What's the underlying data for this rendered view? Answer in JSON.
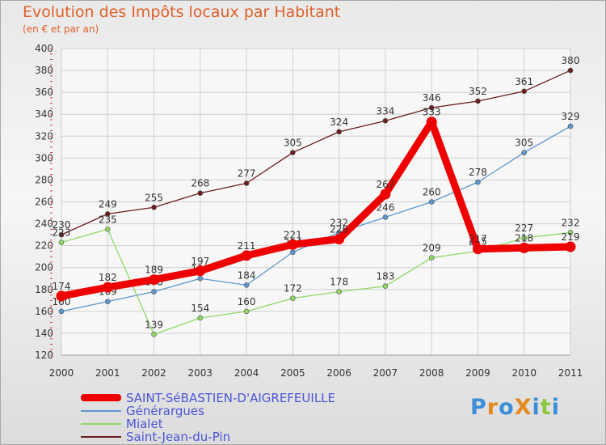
{
  "title": "Evolution des Impôts locaux par Habitant",
  "subtitle": "(en € et par an)",
  "logo_text": "ProXiti",
  "chart_data": {
    "type": "line",
    "title": "Evolution des Impôts locaux par Habitant",
    "ylabel": "(en € et par an)",
    "xlabel": "",
    "ylim": [
      120,
      400
    ],
    "yticks": [
      120,
      140,
      160,
      180,
      200,
      220,
      240,
      260,
      280,
      300,
      320,
      340,
      360,
      380,
      400
    ],
    "categories": [
      "2000",
      "2001",
      "2002",
      "2003",
      "2004",
      "2005",
      "2006",
      "2007",
      "2008",
      "2009",
      "2010",
      "2011"
    ],
    "grid": true,
    "legend_position": "bottom-left",
    "series": [
      {
        "name": "Saint-Jean-du-Pin",
        "color": "#6b1c1c",
        "values": [
          230,
          249,
          255,
          268,
          277,
          305,
          324,
          334,
          346,
          352,
          361,
          380
        ]
      },
      {
        "name": "Générargues",
        "color": "#5b97d0",
        "values": [
          160,
          169,
          178,
          190,
          184,
          214,
          232,
          246,
          260,
          278,
          305,
          329
        ]
      },
      {
        "name": "Mialet",
        "color": "#8fd866",
        "values": [
          223,
          235,
          139,
          154,
          160,
          172,
          178,
          183,
          209,
          215,
          227,
          232
        ]
      },
      {
        "name": "SAINT-SéBASTIEN-D'AIGREFEUILLE",
        "color": "#ee0000",
        "values": [
          174,
          182,
          189,
          197,
          211,
          221,
          226,
          267,
          333,
          217,
          218,
          219
        ]
      }
    ],
    "value_labels": {
      "Saint-Jean-du-Pin": [
        "230",
        "249",
        "255",
        "268",
        "277",
        "305",
        "324",
        "334",
        "346",
        "352",
        "361",
        "380"
      ],
      "Générargues": [
        "160",
        "169",
        "178",
        "190",
        "184",
        "214",
        "232",
        "246",
        "260",
        "278",
        "305",
        "329"
      ],
      "Mialet": [
        "223",
        "235",
        "139",
        "154",
        "160",
        "172",
        "178",
        "183",
        "209",
        "215",
        "227",
        "232"
      ],
      "SAINT-SéBASTIEN-D'AIGREFEUILLE": [
        "174",
        "182",
        "189",
        "197",
        "211",
        "221",
        "226",
        "267",
        "333",
        "217",
        "218",
        "219"
      ]
    }
  },
  "legend": [
    {
      "label": "SAINT-SéBASTIEN-D'AIGREFEUILLE",
      "color": "#ee0000"
    },
    {
      "label": "Générargues",
      "color": "#5b97d0"
    },
    {
      "label": "Mialet",
      "color": "#8fd866"
    },
    {
      "label": "Saint-Jean-du-Pin",
      "color": "#6b1c1c"
    }
  ]
}
